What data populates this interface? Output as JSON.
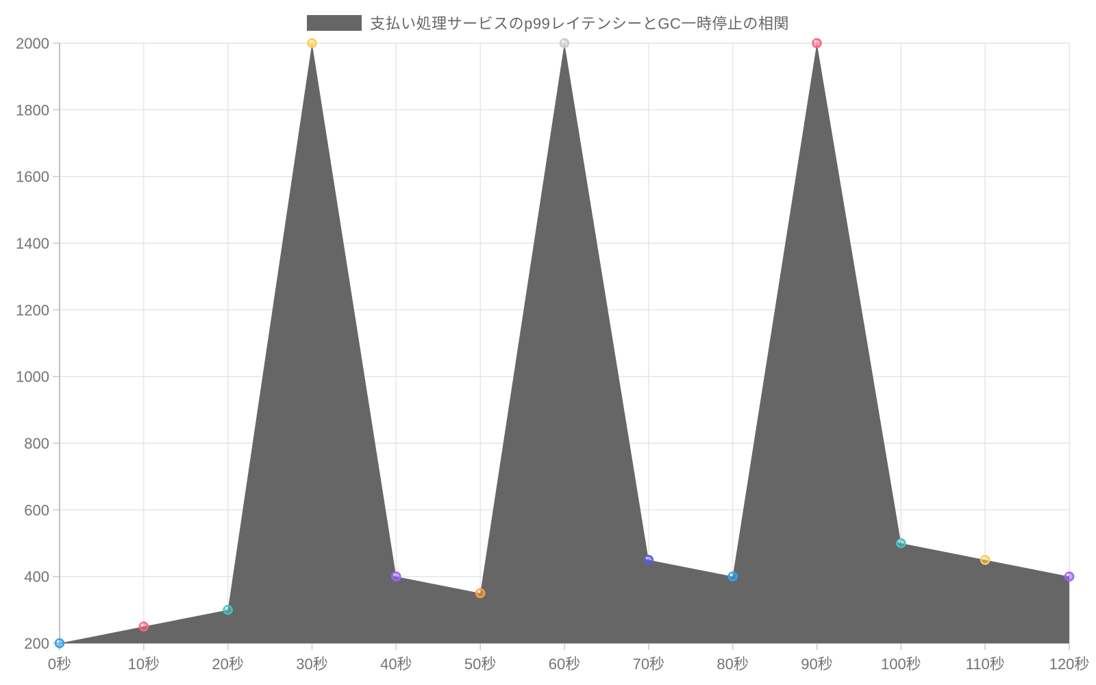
{
  "legend": {
    "label": "支払い処理サービスのp99レイテンシーとGC一時停止の相関",
    "swatch_color": "#666666"
  },
  "chart_data": {
    "type": "area",
    "title": "支払い処理サービスのp99レイテンシーとGC一時停止の相関",
    "categories": [
      "0秒",
      "10秒",
      "20秒",
      "30秒",
      "40秒",
      "50秒",
      "60秒",
      "70秒",
      "80秒",
      "90秒",
      "100秒",
      "110秒",
      "120秒"
    ],
    "values": [
      200,
      250,
      300,
      2000,
      400,
      350,
      2000,
      450,
      400,
      2000,
      500,
      450,
      400
    ],
    "series": [
      {
        "name": "支払い処理サービスのp99レイテンシーとGC一時停止の相関",
        "values": [
          200,
          250,
          300,
          2000,
          400,
          350,
          2000,
          450,
          400,
          2000,
          500,
          450,
          400
        ]
      }
    ],
    "xlabel": "",
    "ylabel": "",
    "ylim": [
      200,
      2000
    ],
    "y_ticks": [
      200,
      400,
      600,
      800,
      1000,
      1200,
      1400,
      1600,
      1800,
      2000
    ],
    "grid": true,
    "legend_position": "top",
    "fill_color": "#666666",
    "point_colors": [
      "#36A2EB",
      "#FF6384",
      "#4BC0C0",
      "#FFCD56",
      "#9966FF",
      "#FF9F40",
      "#C9CBCF",
      "#5A5CE0",
      "#36A2EB",
      "#FF6384",
      "#4BC0C0",
      "#FFCD56",
      "#9966FF"
    ],
    "colors": {
      "grid_line": "#e4e4e4",
      "axis_line": "#c0c0c0",
      "tick_mark": "#cccccc",
      "tick_label": "#737373"
    }
  }
}
